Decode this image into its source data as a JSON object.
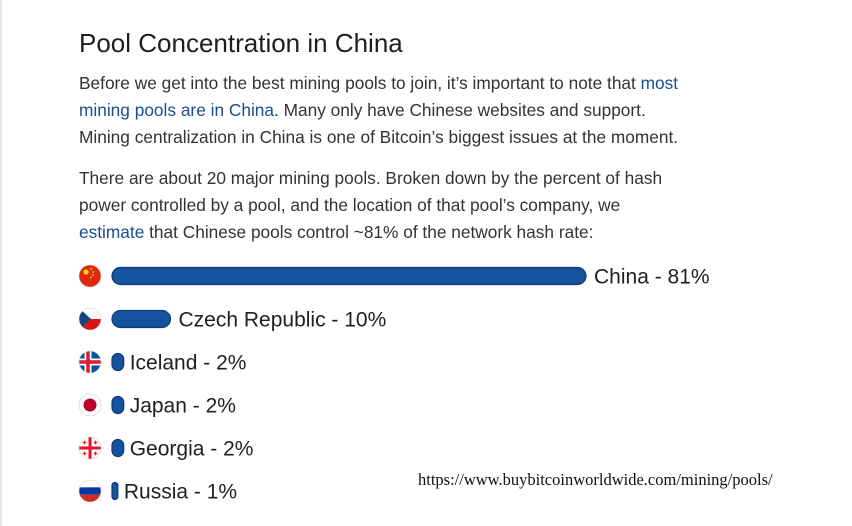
{
  "article": {
    "heading": "Pool Concentration in China",
    "p1": {
      "line1_text": "Before we get into the best mining pools to join, it’s important to note that ",
      "line1_link": "most",
      "line2_link": "mining pools are in China",
      "line2_text": ". Many only have Chinese websites and support.",
      "line3_text": "Mining centralization in China is one of Bitcoin’s biggest issues at the moment."
    },
    "p2": {
      "line1_text": "There are about 20 major mining pools. Broken down by the percent of hash",
      "line2_text": "power controlled by a pool, and the location of that pool’s company, we",
      "line3_link": "estimate",
      "line3_text": " that Chinese pools control ~81% of the network hash rate:"
    }
  },
  "chart_data": {
    "type": "bar",
    "orientation": "horizontal",
    "categories": [
      "China",
      "Czech Republic",
      "Iceland",
      "Japan",
      "Georgia",
      "Russia"
    ],
    "values": [
      81,
      10,
      2,
      2,
      2,
      1
    ],
    "labels": [
      "China - 81%",
      "Czech Republic - 10%",
      "Iceland - 2%",
      "Japan - 2%",
      "Georgia - 2%",
      "Russia - 1%"
    ],
    "flags": [
      "china-flag-icon",
      "czech-flag-icon",
      "iceland-flag-icon",
      "japan-flag-icon",
      "georgia-flag-icon",
      "russia-flag-icon"
    ],
    "bar_color": "#1553a0",
    "bar_border_color": "#0d3a73"
  },
  "source_url": "https://www.buybitcoinworldwide.com/mining/pools/"
}
